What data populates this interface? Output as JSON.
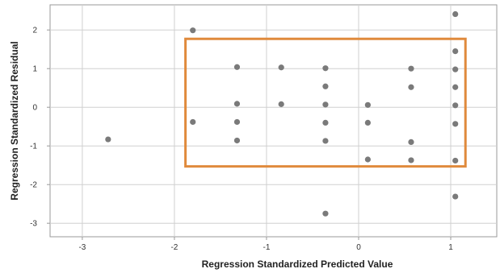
{
  "chart_data": {
    "type": "scatter",
    "title": "",
    "xlabel": "Regression Standardized Predicted Value",
    "ylabel": "Regression Standardized Residual",
    "xlim": [
      -3.35,
      1.5
    ],
    "ylim": [
      -3.35,
      2.65
    ],
    "x_ticks": [
      -3,
      -2,
      -1,
      0,
      1
    ],
    "y_ticks": [
      2,
      1,
      0,
      -1,
      -2,
      -3
    ],
    "x_tick_labels": [
      "-3",
      "-2",
      "-1",
      "0",
      "1"
    ],
    "y_tick_labels": [
      "2",
      "1",
      "0",
      "-1",
      "-2",
      "-3"
    ],
    "grid": true,
    "point_color": "#7a7a7a",
    "highlight_color": "#e08a3c",
    "highlight_box": {
      "x": [
        -1.88,
        1.16
      ],
      "y": [
        -1.53,
        1.77
      ]
    },
    "points": [
      {
        "x": -2.72,
        "y": -0.83
      },
      {
        "x": -1.8,
        "y": 1.99
      },
      {
        "x": -1.8,
        "y": -0.38
      },
      {
        "x": -1.32,
        "y": 1.04
      },
      {
        "x": -1.32,
        "y": 0.09
      },
      {
        "x": -1.32,
        "y": -0.38
      },
      {
        "x": -1.32,
        "y": -0.86
      },
      {
        "x": -0.84,
        "y": 1.03
      },
      {
        "x": -0.84,
        "y": 0.08
      },
      {
        "x": -0.36,
        "y": 1.01
      },
      {
        "x": -0.36,
        "y": 0.54
      },
      {
        "x": -0.36,
        "y": 0.07
      },
      {
        "x": -0.36,
        "y": -0.4
      },
      {
        "x": -0.36,
        "y": -0.87
      },
      {
        "x": -0.36,
        "y": -2.75
      },
      {
        "x": 0.1,
        "y": 0.06
      },
      {
        "x": 0.1,
        "y": -0.4
      },
      {
        "x": 0.1,
        "y": -1.35
      },
      {
        "x": 0.57,
        "y": 1.0
      },
      {
        "x": 0.57,
        "y": 0.52
      },
      {
        "x": 0.57,
        "y": -0.9
      },
      {
        "x": 0.57,
        "y": -1.37
      },
      {
        "x": 1.05,
        "y": 2.41
      },
      {
        "x": 1.05,
        "y": 1.45
      },
      {
        "x": 1.05,
        "y": 0.98
      },
      {
        "x": 1.05,
        "y": 0.52
      },
      {
        "x": 1.05,
        "y": 0.05
      },
      {
        "x": 1.05,
        "y": -0.43
      },
      {
        "x": 1.05,
        "y": -1.38
      },
      {
        "x": 1.05,
        "y": -2.31
      }
    ]
  }
}
